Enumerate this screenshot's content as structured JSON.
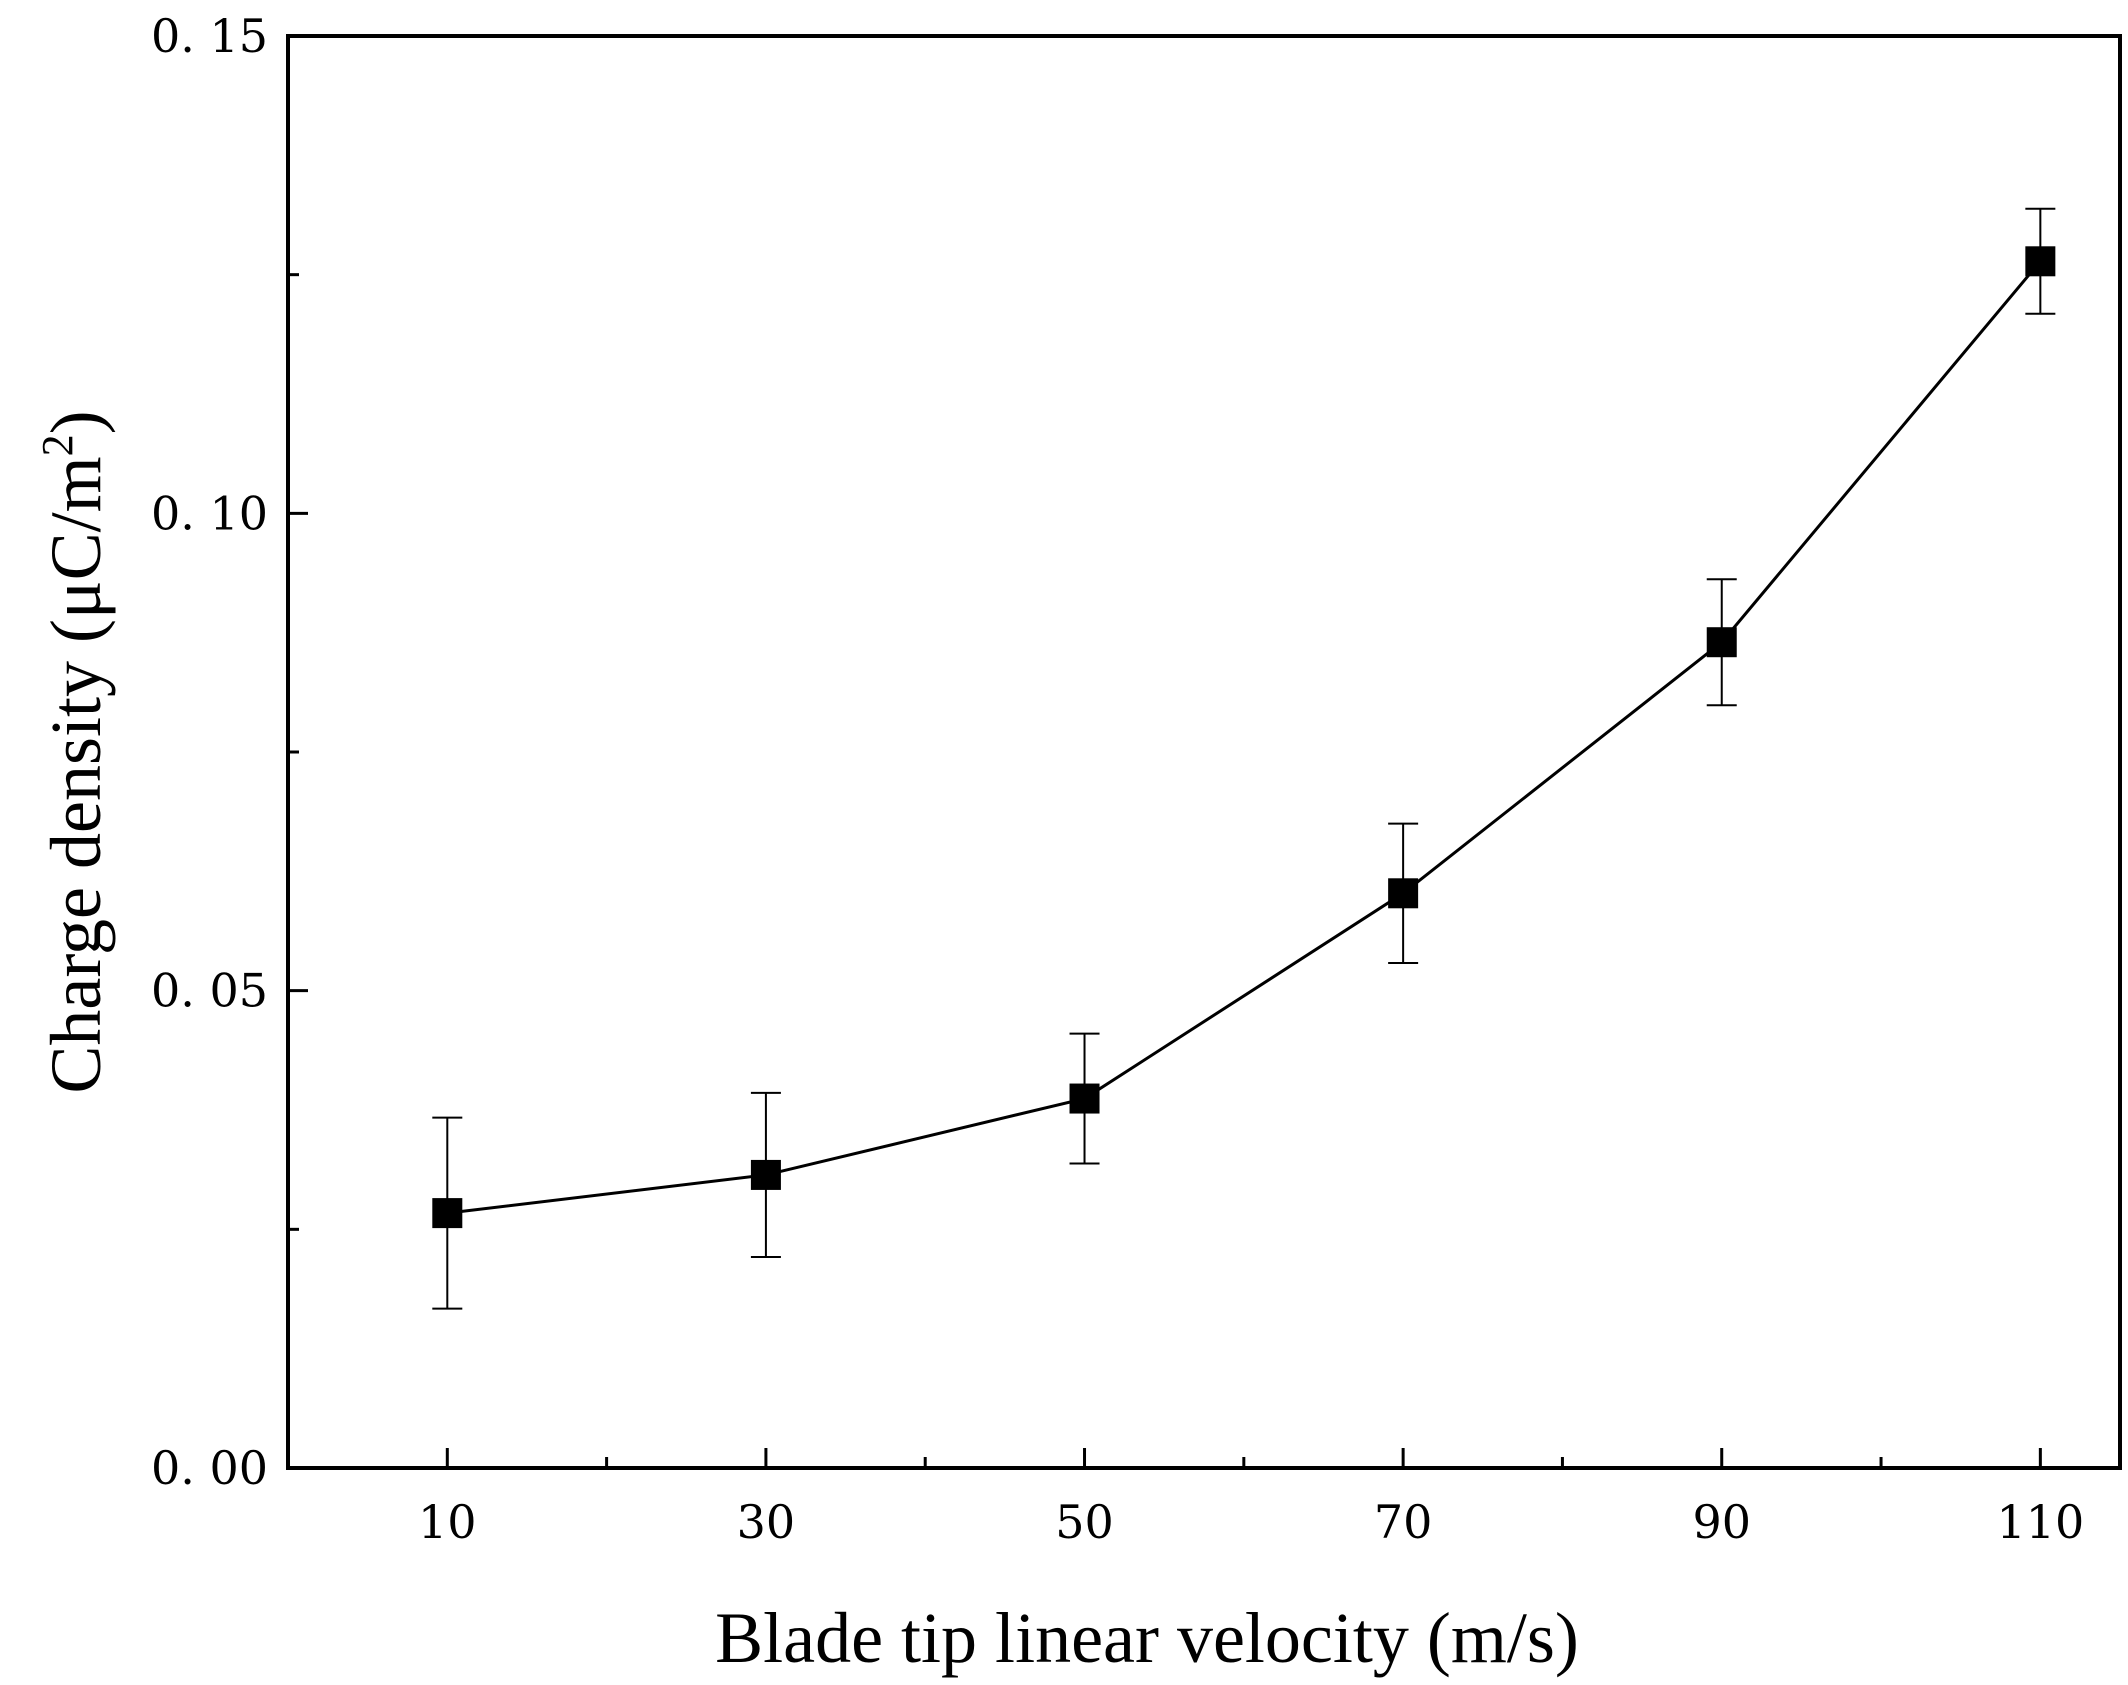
{
  "chart_data": {
    "type": "line",
    "title": "",
    "xlabel": "Blade tip linear velocity (m/s)",
    "ylabel": {
      "main": "Charge density (μC/m",
      "sup": "2",
      "close": ")"
    },
    "xlim": [
      0,
      115
    ],
    "ylim": [
      0,
      0.15
    ],
    "xticks": [
      10,
      30,
      50,
      70,
      90,
      110
    ],
    "xtick_labels": [
      "10",
      "30",
      "50",
      "70",
      "90",
      "110"
    ],
    "xminor": [
      20,
      40,
      60,
      80,
      100
    ],
    "yticks": [
      0.0,
      0.05,
      0.1,
      0.15
    ],
    "ytick_labels": [
      "0. 00",
      "0. 05",
      "0. 10",
      "0. 15"
    ],
    "yminor": [
      0.025,
      0.075,
      0.125
    ],
    "grid": false,
    "legend": null,
    "series": [
      {
        "name": "Charge density",
        "marker": "square",
        "color": "#000000",
        "x": [
          10,
          30,
          50,
          70,
          90,
          110
        ],
        "y": [
          0.0267,
          0.0307,
          0.0387,
          0.0602,
          0.0865,
          0.1264
        ],
        "err": [
          0.01,
          0.0086,
          0.0068,
          0.0073,
          0.0066,
          0.0055
        ]
      }
    ]
  }
}
